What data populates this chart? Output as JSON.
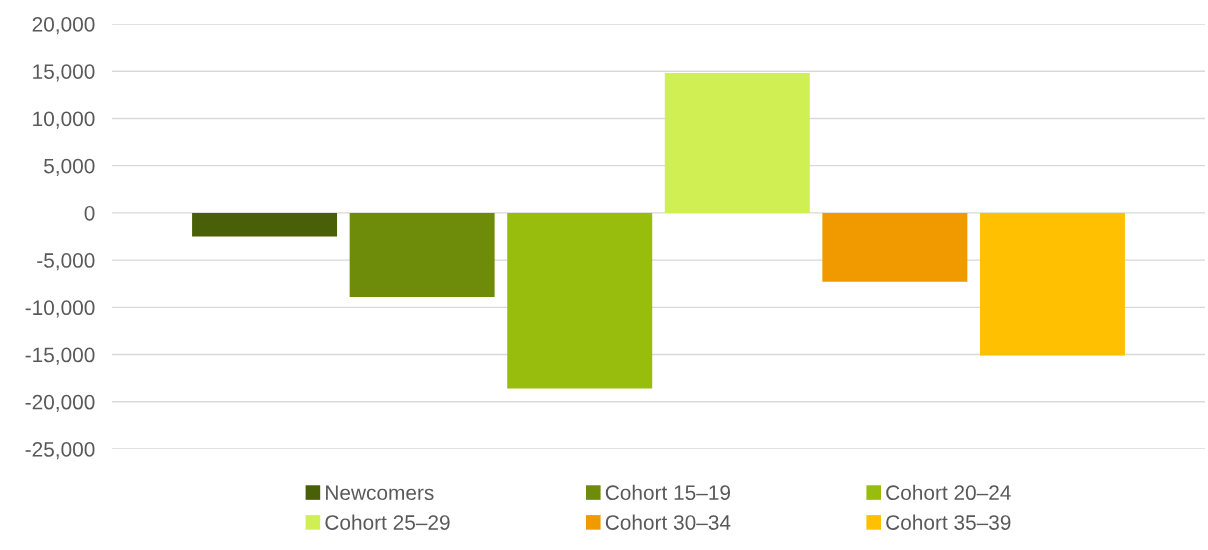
{
  "chart_data": {
    "type": "bar",
    "categories": [
      null
    ],
    "series": [
      {
        "name": "Newcomers",
        "color": "#4a6008",
        "values": [
          -2500
        ]
      },
      {
        "name": "Cohort 15–19",
        "color": "#6e8c0a",
        "values": [
          -8900
        ]
      },
      {
        "name": "Cohort 20–24",
        "color": "#98bd0d",
        "values": [
          -18600
        ]
      },
      {
        "name": "Cohort 25–29",
        "color": "#d0ef52",
        "values": [
          14800
        ]
      },
      {
        "name": "Cohort 30–34",
        "color": "#f09a00",
        "values": [
          -7300
        ]
      },
      {
        "name": "Cohort 35–39",
        "color": "#fec000",
        "values": [
          -15100
        ]
      }
    ],
    "ylim": [
      -25000,
      20000
    ],
    "yticks": [
      {
        "value": -25000,
        "label": "-25,000"
      },
      {
        "value": -20000,
        "label": "-20,000"
      },
      {
        "value": -15000,
        "label": "-15,000"
      },
      {
        "value": -10000,
        "label": "-10,000"
      },
      {
        "value": -5000,
        "label": "-5,000"
      },
      0,
      {
        "value": 5000,
        "label": "5,000"
      },
      {
        "value": 10000,
        "label": "10,000"
      },
      {
        "value": 15000,
        "label": "15,000"
      },
      {
        "value": 20000,
        "label": "20,000"
      }
    ],
    "grid": "y",
    "legend": "bottom"
  }
}
